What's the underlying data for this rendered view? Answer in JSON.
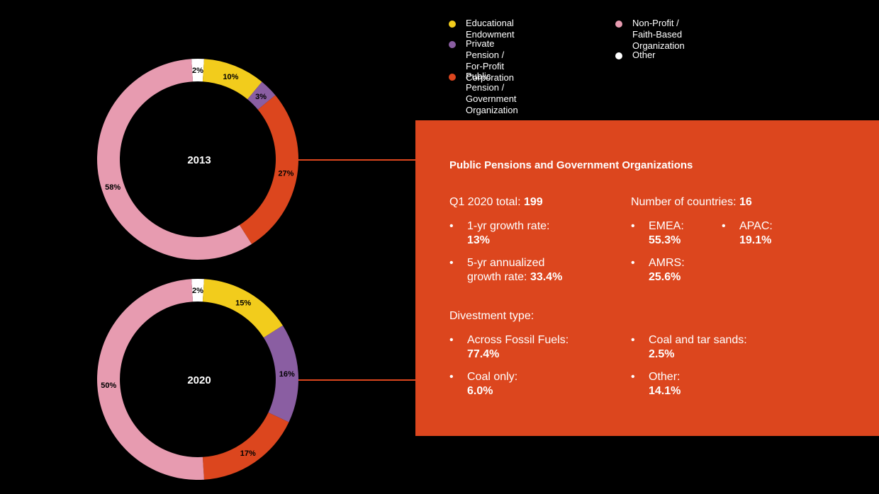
{
  "legend": [
    {
      "label": "Educational Endowment",
      "color": "#f2cc1c"
    },
    {
      "label": "Private Pension /\nFor-Profit Corporation",
      "color": "#8a5ea2"
    },
    {
      "label": "Public Pension /\nGovernment Organization",
      "color": "#dc461e"
    },
    {
      "label": "Non-Profit /\nFaith-Based Organization",
      "color": "#e79bb0"
    },
    {
      "label": "Other",
      "color": "#ffffff"
    }
  ],
  "chart_data": [
    {
      "type": "pie",
      "variant": "donut",
      "center_label": "2013",
      "categories": [
        "Other",
        "Educational Endowment",
        "Private Pension / For-Profit Corporation",
        "Public Pension / Government Organization",
        "Non-Profit / Faith-Based Organization"
      ],
      "values": [
        2,
        10,
        3,
        27,
        58
      ],
      "labels": [
        "2%",
        "10%",
        "3%",
        "27%",
        "58%"
      ],
      "colors": [
        "#ffffff",
        "#f2cc1c",
        "#8a5ea2",
        "#dc461e",
        "#e79bb0"
      ]
    },
    {
      "type": "pie",
      "variant": "donut",
      "center_label": "2020",
      "categories": [
        "Other",
        "Educational Endowment",
        "Private Pension / For-Profit Corporation",
        "Public Pension / Government Organization",
        "Non-Profit / Faith-Based Organization"
      ],
      "values": [
        2,
        15,
        16,
        17,
        50
      ],
      "labels": [
        "2%",
        "15%",
        "16%",
        "17%",
        "50%"
      ],
      "colors": [
        "#ffffff",
        "#f2cc1c",
        "#8a5ea2",
        "#dc461e",
        "#e79bb0"
      ]
    }
  ],
  "info": {
    "title": "Public Pensions and Government Organizations",
    "total_label": "Q1 2020 total: ",
    "total_value": "199",
    "countries_label": "Number of countries: ",
    "countries_value": "16",
    "growth_1yr_label": "1-yr growth rate:",
    "growth_1yr_value": "13%",
    "growth_5yr_label_line1": "5-yr annualized",
    "growth_5yr_label_line2": "growth rate: ",
    "growth_5yr_value": "33.4%",
    "emea_label": "EMEA:",
    "emea_value": "55.3%",
    "apac_label": "APAC:",
    "apac_value": "19.1%",
    "amrs_label": "AMRS:",
    "amrs_value": "25.6%",
    "divestment_label": "Divestment type:",
    "fossil_label": "Across Fossil Fuels:",
    "fossil_value": "77.4%",
    "coal_tar_label": "Coal and tar sands:",
    "coal_tar_value": "2.5%",
    "coal_only_label": "Coal only:",
    "coal_only_value": "6.0%",
    "other_label": "Other:",
    "other_value": "14.1%",
    "bullet": "•"
  }
}
